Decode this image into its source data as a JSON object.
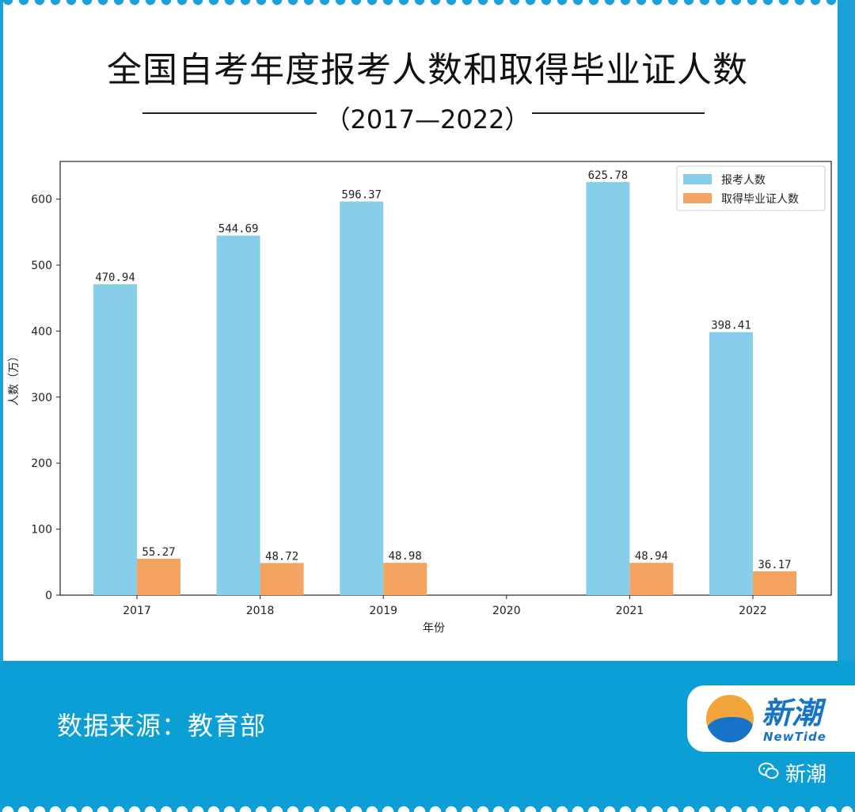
{
  "header": {
    "title": "全国自考年度报考人数和取得毕业证人数",
    "subtitle": "（2017—2022）"
  },
  "chart_data": {
    "type": "bar",
    "categories": [
      "2017",
      "2018",
      "2019",
      "2020",
      "2021",
      "2022"
    ],
    "series": [
      {
        "name": "报考人数",
        "color": "#87ceeb",
        "values": [
          470.94,
          544.69,
          596.37,
          null,
          625.78,
          398.41
        ],
        "labels": [
          "470.94",
          "544.69",
          "596.37",
          "",
          "625.78",
          "398.41"
        ]
      },
      {
        "name": "取得毕业证人数",
        "color": "#f4a460",
        "values": [
          55.27,
          48.72,
          48.98,
          null,
          48.94,
          36.17
        ],
        "labels": [
          "55.27",
          "48.72",
          "48.98",
          "",
          "48.94",
          "36.17"
        ]
      }
    ],
    "xlabel": "年份",
    "ylabel": "人数（万）",
    "ylim": [
      0,
      657
    ],
    "yticks": [
      0,
      100,
      200,
      300,
      400,
      500,
      600
    ],
    "legend": "top-right",
    "grid": false
  },
  "footer": {
    "source": "数据来源：教育部",
    "logo_cn": "新潮",
    "logo_en": "NewTide",
    "wechat_icon": "wechat-icon",
    "wechat_name": "新潮"
  }
}
